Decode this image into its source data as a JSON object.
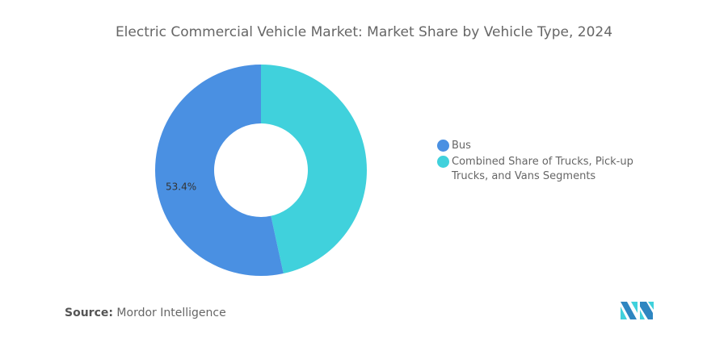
{
  "chart_data": {
    "type": "pie",
    "title": "Electric Commercial Vehicle Market: Market Share by Vehicle Type, 2024",
    "donut": true,
    "slices": [
      {
        "label": "Combined Share of Trucks, Pick-up Trucks, and Vans Segments",
        "value": 46.6,
        "color": "#40D1DC",
        "data_label": ""
      },
      {
        "label": "Bus",
        "value": 53.4,
        "color": "#4A90E2",
        "data_label": "53.4%"
      }
    ],
    "legend": {
      "position": "right",
      "entries": [
        "Bus",
        "Combined Share of Trucks, Pick-up Trucks, and Vans Segments"
      ]
    }
  },
  "legend_items": [
    {
      "label": "Bus",
      "color": "#4A90E2"
    },
    {
      "label": "Combined Share of Trucks, Pick-up Trucks, and Vans Segments",
      "color": "#40D1DC"
    }
  ],
  "source": {
    "prefix": "Source:",
    "name": "Mordor Intelligence"
  },
  "logo_text": "Mordor Intelligence"
}
